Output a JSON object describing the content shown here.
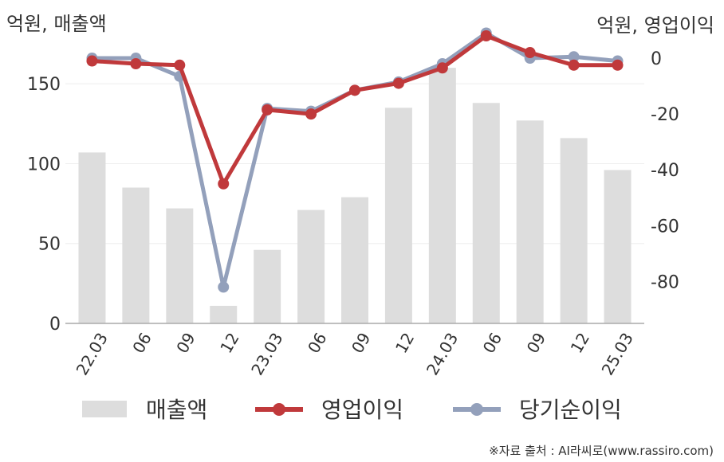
{
  "chart_data": {
    "type": "bar+line",
    "left_axis_unit": "억원, 매출액",
    "right_axis_unit": "억원, 영업이익",
    "categories": [
      "22.03",
      "06",
      "09",
      "12",
      "23.03",
      "06",
      "09",
      "12",
      "24.03",
      "06",
      "09",
      "12",
      "25.03"
    ],
    "left_ticks": [
      "0",
      "50",
      "100",
      "150"
    ],
    "right_ticks": [
      "0",
      "-20",
      "-40",
      "-60",
      "-80"
    ],
    "left_ylim": [
      0,
      180
    ],
    "right_ylim": [
      -95,
      8
    ],
    "series": [
      {
        "name": "매출액",
        "axis": "left",
        "kind": "bar",
        "color": "#dddddd",
        "values": [
          107,
          85,
          72,
          11,
          46,
          71,
          79,
          135,
          160,
          138,
          127,
          116,
          96
        ]
      },
      {
        "name": "영업이익",
        "axis": "right",
        "kind": "line",
        "color": "#c0393b",
        "values": [
          -1,
          -2,
          -2.5,
          -45,
          -18.5,
          -20,
          -11.5,
          -9,
          -3.5,
          8,
          2,
          -2.5,
          -2.5
        ]
      },
      {
        "name": "당기순이익",
        "axis": "right",
        "kind": "line",
        "color": "#93a0bb",
        "values": [
          0,
          0,
          -6.5,
          -82,
          -18,
          -19,
          -11.5,
          -8.5,
          -2,
          9,
          0,
          0.5,
          -1
        ]
      }
    ],
    "grid": true,
    "legend_position": "bottom"
  },
  "source": "※자료 출처 : AI라씨로(www.rassiro.com)"
}
